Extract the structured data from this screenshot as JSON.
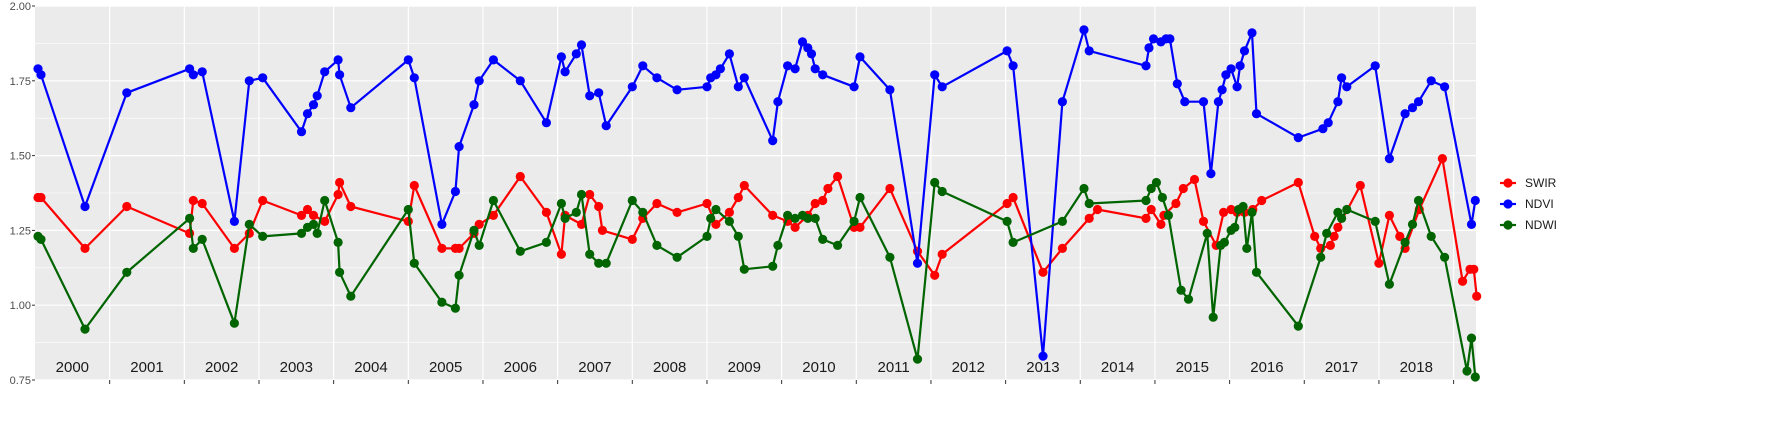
{
  "chart_data": {
    "type": "line",
    "title": "",
    "xlabel": "",
    "ylabel": "",
    "x_range": [
      2000.0,
      2019.3
    ],
    "ylim": [
      0.75,
      2.0
    ],
    "y_ticks": [
      "0.75",
      "1.00",
      "1.25",
      "1.50",
      "1.75",
      "2.00"
    ],
    "y_tick_values": [
      0.75,
      1.0,
      1.25,
      1.5,
      1.75,
      2.0
    ],
    "year_labels": [
      "2000",
      "2001",
      "2002",
      "2003",
      "2004",
      "2005",
      "2006",
      "2007",
      "2008",
      "2009",
      "2010",
      "2011",
      "2012",
      "2013",
      "2014",
      "2015",
      "2016",
      "2017",
      "2018"
    ],
    "grid": true,
    "legend_position": "right",
    "colors": {
      "SWIR": "#ff0000",
      "NDVI": "#0000ff",
      "NDWI": "#006400",
      "panel": "#ebebeb",
      "grid": "#ffffff"
    },
    "series": [
      {
        "name": "SWIR",
        "color": "#ff0000",
        "points": [
          [
            2000.04,
            1.36
          ],
          [
            2000.08,
            1.36
          ],
          [
            2000.67,
            1.19
          ],
          [
            2001.23,
            1.33
          ],
          [
            2002.07,
            1.24
          ],
          [
            2002.12,
            1.35
          ],
          [
            2002.24,
            1.34
          ],
          [
            2002.67,
            1.19
          ],
          [
            2002.87,
            1.24
          ],
          [
            2003.05,
            1.35
          ],
          [
            2003.57,
            1.3
          ],
          [
            2003.65,
            1.32
          ],
          [
            2003.73,
            1.3
          ],
          [
            2003.88,
            1.28
          ],
          [
            2004.06,
            1.37
          ],
          [
            2004.08,
            1.41
          ],
          [
            2004.23,
            1.33
          ],
          [
            2005.0,
            1.28
          ],
          [
            2005.08,
            1.4
          ],
          [
            2005.45,
            1.19
          ],
          [
            2005.63,
            1.19
          ],
          [
            2005.68,
            1.19
          ],
          [
            2005.88,
            1.24
          ],
          [
            2005.95,
            1.27
          ],
          [
            2006.14,
            1.3
          ],
          [
            2006.5,
            1.43
          ],
          [
            2006.85,
            1.31
          ],
          [
            2007.05,
            1.17
          ],
          [
            2007.1,
            1.3
          ],
          [
            2007.32,
            1.27
          ],
          [
            2007.43,
            1.37
          ],
          [
            2007.55,
            1.33
          ],
          [
            2007.6,
            1.25
          ],
          [
            2008.0,
            1.22
          ],
          [
            2008.14,
            1.29
          ],
          [
            2008.33,
            1.34
          ],
          [
            2008.6,
            1.31
          ],
          [
            2009.0,
            1.34
          ],
          [
            2009.12,
            1.27
          ],
          [
            2009.3,
            1.31
          ],
          [
            2009.42,
            1.36
          ],
          [
            2009.5,
            1.4
          ],
          [
            2009.88,
            1.3
          ],
          [
            2010.08,
            1.28
          ],
          [
            2010.18,
            1.26
          ],
          [
            2010.35,
            1.3
          ],
          [
            2010.45,
            1.34
          ],
          [
            2010.55,
            1.35
          ],
          [
            2010.62,
            1.39
          ],
          [
            2010.75,
            1.43
          ],
          [
            2010.97,
            1.26
          ],
          [
            2011.05,
            1.26
          ],
          [
            2011.45,
            1.39
          ],
          [
            2011.82,
            1.18
          ],
          [
            2012.05,
            1.1
          ],
          [
            2012.15,
            1.17
          ],
          [
            2013.02,
            1.34
          ],
          [
            2013.1,
            1.36
          ],
          [
            2013.5,
            1.11
          ],
          [
            2013.76,
            1.19
          ],
          [
            2014.12,
            1.29
          ],
          [
            2014.23,
            1.32
          ],
          [
            2014.88,
            1.29
          ],
          [
            2014.95,
            1.32
          ],
          [
            2015.08,
            1.27
          ],
          [
            2015.12,
            1.3
          ],
          [
            2015.28,
            1.34
          ],
          [
            2015.38,
            1.39
          ],
          [
            2015.53,
            1.42
          ],
          [
            2015.65,
            1.28
          ],
          [
            2015.82,
            1.2
          ],
          [
            2015.92,
            1.31
          ],
          [
            2016.02,
            1.32
          ],
          [
            2016.1,
            1.31
          ],
          [
            2016.2,
            1.31
          ],
          [
            2016.31,
            1.32
          ],
          [
            2016.43,
            1.35
          ],
          [
            2016.92,
            1.41
          ],
          [
            2017.14,
            1.23
          ],
          [
            2017.22,
            1.19
          ],
          [
            2017.35,
            1.2
          ],
          [
            2017.4,
            1.23
          ],
          [
            2017.45,
            1.26
          ],
          [
            2017.75,
            1.4
          ],
          [
            2018.0,
            1.14
          ],
          [
            2018.14,
            1.3
          ],
          [
            2018.28,
            1.23
          ],
          [
            2018.35,
            1.19
          ],
          [
            2018.54,
            1.32
          ],
          [
            2018.85,
            1.49
          ],
          [
            2019.12,
            1.08
          ],
          [
            2019.22,
            1.12
          ],
          [
            2019.27,
            1.12
          ],
          [
            2019.31,
            1.03
          ]
        ]
      },
      {
        "name": "NDVI",
        "color": "#0000ff",
        "points": [
          [
            2000.04,
            1.79
          ],
          [
            2000.08,
            1.77
          ],
          [
            2000.67,
            1.33
          ],
          [
            2001.23,
            1.71
          ],
          [
            2002.07,
            1.79
          ],
          [
            2002.12,
            1.77
          ],
          [
            2002.24,
            1.78
          ],
          [
            2002.67,
            1.28
          ],
          [
            2002.87,
            1.75
          ],
          [
            2003.05,
            1.76
          ],
          [
            2003.57,
            1.58
          ],
          [
            2003.65,
            1.64
          ],
          [
            2003.73,
            1.67
          ],
          [
            2003.78,
            1.7
          ],
          [
            2003.88,
            1.78
          ],
          [
            2004.06,
            1.82
          ],
          [
            2004.08,
            1.77
          ],
          [
            2004.23,
            1.66
          ],
          [
            2005.0,
            1.82
          ],
          [
            2005.08,
            1.76
          ],
          [
            2005.45,
            1.27
          ],
          [
            2005.63,
            1.38
          ],
          [
            2005.68,
            1.53
          ],
          [
            2005.88,
            1.67
          ],
          [
            2005.95,
            1.75
          ],
          [
            2006.14,
            1.82
          ],
          [
            2006.5,
            1.75
          ],
          [
            2006.85,
            1.61
          ],
          [
            2007.05,
            1.83
          ],
          [
            2007.1,
            1.78
          ],
          [
            2007.25,
            1.84
          ],
          [
            2007.32,
            1.87
          ],
          [
            2007.43,
            1.7
          ],
          [
            2007.55,
            1.71
          ],
          [
            2007.65,
            1.6
          ],
          [
            2008.0,
            1.73
          ],
          [
            2008.14,
            1.8
          ],
          [
            2008.33,
            1.76
          ],
          [
            2008.6,
            1.72
          ],
          [
            2009.0,
            1.73
          ],
          [
            2009.05,
            1.76
          ],
          [
            2009.12,
            1.77
          ],
          [
            2009.18,
            1.79
          ],
          [
            2009.3,
            1.84
          ],
          [
            2009.42,
            1.73
          ],
          [
            2009.5,
            1.76
          ],
          [
            2009.88,
            1.55
          ],
          [
            2009.95,
            1.68
          ],
          [
            2010.08,
            1.8
          ],
          [
            2010.18,
            1.79
          ],
          [
            2010.28,
            1.88
          ],
          [
            2010.35,
            1.86
          ],
          [
            2010.4,
            1.84
          ],
          [
            2010.45,
            1.79
          ],
          [
            2010.55,
            1.77
          ],
          [
            2010.97,
            1.73
          ],
          [
            2011.05,
            1.83
          ],
          [
            2011.45,
            1.72
          ],
          [
            2011.82,
            1.14
          ],
          [
            2012.05,
            1.77
          ],
          [
            2012.15,
            1.73
          ],
          [
            2013.02,
            1.85
          ],
          [
            2013.1,
            1.8
          ],
          [
            2013.5,
            0.83
          ],
          [
            2013.76,
            1.68
          ],
          [
            2014.05,
            1.92
          ],
          [
            2014.12,
            1.85
          ],
          [
            2014.88,
            1.8
          ],
          [
            2014.92,
            1.86
          ],
          [
            2014.98,
            1.89
          ],
          [
            2015.08,
            1.88
          ],
          [
            2015.15,
            1.89
          ],
          [
            2015.2,
            1.89
          ],
          [
            2015.3,
            1.74
          ],
          [
            2015.4,
            1.68
          ],
          [
            2015.65,
            1.68
          ],
          [
            2015.75,
            1.44
          ],
          [
            2015.85,
            1.68
          ],
          [
            2015.9,
            1.72
          ],
          [
            2015.95,
            1.77
          ],
          [
            2016.02,
            1.79
          ],
          [
            2016.1,
            1.73
          ],
          [
            2016.14,
            1.8
          ],
          [
            2016.2,
            1.85
          ],
          [
            2016.3,
            1.91
          ],
          [
            2016.36,
            1.64
          ],
          [
            2016.92,
            1.56
          ],
          [
            2017.25,
            1.59
          ],
          [
            2017.32,
            1.61
          ],
          [
            2017.45,
            1.68
          ],
          [
            2017.5,
            1.76
          ],
          [
            2017.57,
            1.73
          ],
          [
            2017.95,
            1.8
          ],
          [
            2018.14,
            1.49
          ],
          [
            2018.35,
            1.64
          ],
          [
            2018.45,
            1.66
          ],
          [
            2018.53,
            1.68
          ],
          [
            2018.7,
            1.75
          ],
          [
            2018.88,
            1.73
          ],
          [
            2019.24,
            1.27
          ],
          [
            2019.29,
            1.35
          ]
        ]
      },
      {
        "name": "NDWI",
        "color": "#006400",
        "points": [
          [
            2000.04,
            1.23
          ],
          [
            2000.08,
            1.22
          ],
          [
            2000.67,
            0.92
          ],
          [
            2001.23,
            1.11
          ],
          [
            2002.07,
            1.29
          ],
          [
            2002.12,
            1.19
          ],
          [
            2002.24,
            1.22
          ],
          [
            2002.67,
            0.94
          ],
          [
            2002.87,
            1.27
          ],
          [
            2003.05,
            1.23
          ],
          [
            2003.57,
            1.24
          ],
          [
            2003.65,
            1.26
          ],
          [
            2003.73,
            1.27
          ],
          [
            2003.78,
            1.24
          ],
          [
            2003.88,
            1.35
          ],
          [
            2004.06,
            1.21
          ],
          [
            2004.08,
            1.11
          ],
          [
            2004.23,
            1.03
          ],
          [
            2005.0,
            1.32
          ],
          [
            2005.08,
            1.14
          ],
          [
            2005.45,
            1.01
          ],
          [
            2005.63,
            0.99
          ],
          [
            2005.68,
            1.1
          ],
          [
            2005.88,
            1.25
          ],
          [
            2005.95,
            1.2
          ],
          [
            2006.14,
            1.35
          ],
          [
            2006.5,
            1.18
          ],
          [
            2006.85,
            1.21
          ],
          [
            2007.05,
            1.34
          ],
          [
            2007.1,
            1.29
          ],
          [
            2007.25,
            1.31
          ],
          [
            2007.32,
            1.37
          ],
          [
            2007.43,
            1.17
          ],
          [
            2007.55,
            1.14
          ],
          [
            2007.65,
            1.14
          ],
          [
            2008.0,
            1.35
          ],
          [
            2008.14,
            1.31
          ],
          [
            2008.33,
            1.2
          ],
          [
            2008.6,
            1.16
          ],
          [
            2009.0,
            1.23
          ],
          [
            2009.05,
            1.29
          ],
          [
            2009.12,
            1.32
          ],
          [
            2009.3,
            1.28
          ],
          [
            2009.42,
            1.23
          ],
          [
            2009.5,
            1.12
          ],
          [
            2009.88,
            1.13
          ],
          [
            2009.95,
            1.2
          ],
          [
            2010.08,
            1.3
          ],
          [
            2010.18,
            1.29
          ],
          [
            2010.28,
            1.3
          ],
          [
            2010.35,
            1.29
          ],
          [
            2010.45,
            1.29
          ],
          [
            2010.55,
            1.22
          ],
          [
            2010.75,
            1.2
          ],
          [
            2010.97,
            1.28
          ],
          [
            2011.05,
            1.36
          ],
          [
            2011.45,
            1.16
          ],
          [
            2011.82,
            0.82
          ],
          [
            2012.05,
            1.41
          ],
          [
            2012.15,
            1.38
          ],
          [
            2013.02,
            1.28
          ],
          [
            2013.1,
            1.21
          ],
          [
            2013.76,
            1.28
          ],
          [
            2014.05,
            1.39
          ],
          [
            2014.12,
            1.34
          ],
          [
            2014.88,
            1.35
          ],
          [
            2014.95,
            1.39
          ],
          [
            2015.02,
            1.41
          ],
          [
            2015.1,
            1.36
          ],
          [
            2015.18,
            1.3
          ],
          [
            2015.35,
            1.05
          ],
          [
            2015.45,
            1.02
          ],
          [
            2015.7,
            1.24
          ],
          [
            2015.78,
            0.96
          ],
          [
            2015.88,
            1.2
          ],
          [
            2015.93,
            1.21
          ],
          [
            2016.02,
            1.25
          ],
          [
            2016.07,
            1.26
          ],
          [
            2016.12,
            1.32
          ],
          [
            2016.18,
            1.33
          ],
          [
            2016.23,
            1.19
          ],
          [
            2016.3,
            1.31
          ],
          [
            2016.36,
            1.11
          ],
          [
            2016.92,
            0.93
          ],
          [
            2017.22,
            1.16
          ],
          [
            2017.3,
            1.24
          ],
          [
            2017.45,
            1.31
          ],
          [
            2017.5,
            1.29
          ],
          [
            2017.57,
            1.32
          ],
          [
            2017.95,
            1.28
          ],
          [
            2018.14,
            1.07
          ],
          [
            2018.35,
            1.21
          ],
          [
            2018.45,
            1.27
          ],
          [
            2018.53,
            1.35
          ],
          [
            2018.7,
            1.23
          ],
          [
            2018.88,
            1.16
          ],
          [
            2019.18,
            0.78
          ],
          [
            2019.24,
            0.89
          ],
          [
            2019.29,
            0.76
          ]
        ]
      }
    ]
  }
}
